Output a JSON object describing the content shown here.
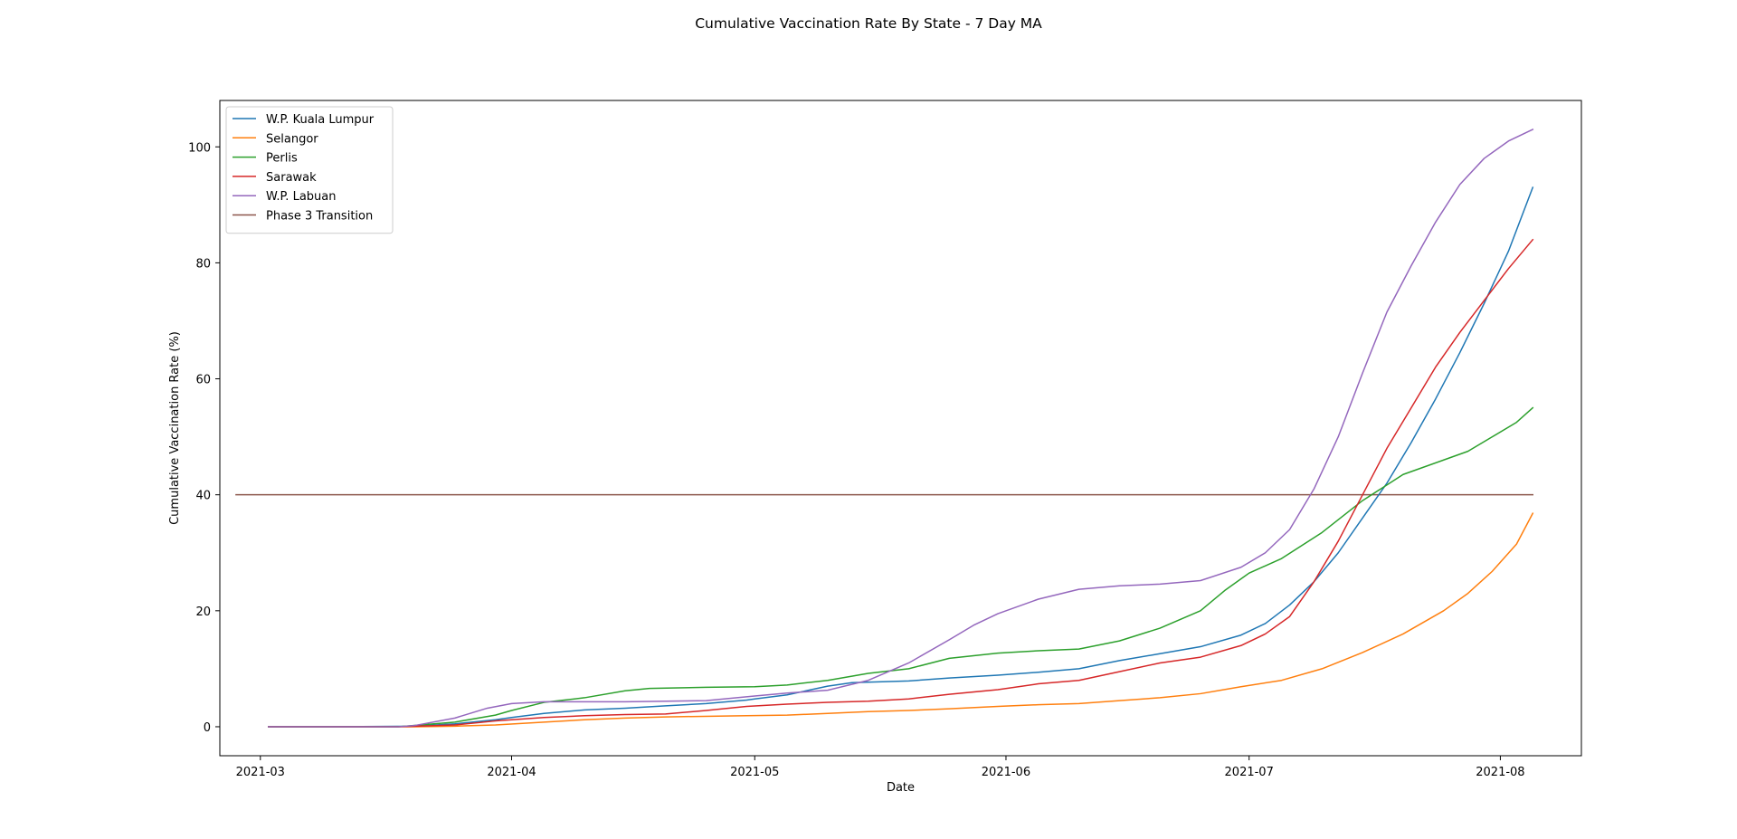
{
  "chart_data": {
    "type": "line",
    "title": "Cumulative Vaccination Rate By State - 7 Day MA",
    "xlabel": "Date",
    "ylabel": "Cumulative Vaccination Rate (%)",
    "x_start": "2021-02-24",
    "x_end": "2021-08-11",
    "ylim": [
      -5,
      108
    ],
    "x_ticks": [
      "2021-03",
      "2021-04",
      "2021-05",
      "2021-06",
      "2021-07",
      "2021-08"
    ],
    "y_ticks": [
      0,
      20,
      40,
      60,
      80,
      100
    ],
    "legend_position": "upper left",
    "grid": false,
    "series": [
      {
        "name": "W.P. Kuala Lumpur",
        "color": "#1f77b4",
        "points": [
          [
            "2021-03-02",
            0
          ],
          [
            "2021-03-10",
            0
          ],
          [
            "2021-03-20",
            0.1
          ],
          [
            "2021-03-25",
            0.5
          ],
          [
            "2021-03-30",
            1.2
          ],
          [
            "2021-04-01",
            1.6
          ],
          [
            "2021-04-05",
            2.3
          ],
          [
            "2021-04-10",
            2.9
          ],
          [
            "2021-04-15",
            3.2
          ],
          [
            "2021-04-20",
            3.6
          ],
          [
            "2021-04-25",
            4.0
          ],
          [
            "2021-04-30",
            4.6
          ],
          [
            "2021-05-01",
            4.8
          ],
          [
            "2021-05-05",
            5.5
          ],
          [
            "2021-05-10",
            7.0
          ],
          [
            "2021-05-13",
            7.6
          ],
          [
            "2021-05-20",
            7.9
          ],
          [
            "2021-05-25",
            8.4
          ],
          [
            "2021-05-31",
            8.9
          ],
          [
            "2021-06-05",
            9.4
          ],
          [
            "2021-06-10",
            10.0
          ],
          [
            "2021-06-15",
            11.4
          ],
          [
            "2021-06-20",
            12.6
          ],
          [
            "2021-06-25",
            13.8
          ],
          [
            "2021-06-30",
            15.8
          ],
          [
            "2021-07-03",
            17.8
          ],
          [
            "2021-07-06",
            21.0
          ],
          [
            "2021-07-09",
            25.0
          ],
          [
            "2021-07-12",
            30.0
          ],
          [
            "2021-07-15",
            36.0
          ],
          [
            "2021-07-18",
            42.0
          ],
          [
            "2021-07-21",
            49.0
          ],
          [
            "2021-07-24",
            56.5
          ],
          [
            "2021-07-27",
            64.5
          ],
          [
            "2021-07-30",
            73.0
          ],
          [
            "2021-08-02",
            82.0
          ],
          [
            "2021-08-05",
            93.0
          ]
        ]
      },
      {
        "name": "Selangor",
        "color": "#ff7f0e",
        "points": [
          [
            "2021-03-02",
            0
          ],
          [
            "2021-03-10",
            0
          ],
          [
            "2021-03-20",
            0
          ],
          [
            "2021-03-25",
            0.1
          ],
          [
            "2021-03-30",
            0.3
          ],
          [
            "2021-04-05",
            0.8
          ],
          [
            "2021-04-10",
            1.2
          ],
          [
            "2021-04-15",
            1.5
          ],
          [
            "2021-04-20",
            1.7
          ],
          [
            "2021-04-30",
            1.9
          ],
          [
            "2021-05-05",
            2.0
          ],
          [
            "2021-05-10",
            2.3
          ],
          [
            "2021-05-15",
            2.6
          ],
          [
            "2021-05-20",
            2.8
          ],
          [
            "2021-05-25",
            3.1
          ],
          [
            "2021-05-31",
            3.5
          ],
          [
            "2021-06-05",
            3.8
          ],
          [
            "2021-06-10",
            4.0
          ],
          [
            "2021-06-15",
            4.5
          ],
          [
            "2021-06-20",
            5.0
          ],
          [
            "2021-06-25",
            5.7
          ],
          [
            "2021-06-30",
            6.9
          ],
          [
            "2021-07-05",
            8.0
          ],
          [
            "2021-07-10",
            10.0
          ],
          [
            "2021-07-15",
            12.8
          ],
          [
            "2021-07-20",
            16.0
          ],
          [
            "2021-07-25",
            20.0
          ],
          [
            "2021-07-28",
            23.0
          ],
          [
            "2021-07-31",
            26.8
          ],
          [
            "2021-08-03",
            31.5
          ],
          [
            "2021-08-05",
            36.8
          ]
        ]
      },
      {
        "name": "Perlis",
        "color": "#2ca02c",
        "points": [
          [
            "2021-03-02",
            0
          ],
          [
            "2021-03-10",
            0
          ],
          [
            "2021-03-18",
            0
          ],
          [
            "2021-03-25",
            0.8
          ],
          [
            "2021-03-30",
            2.0
          ],
          [
            "2021-04-01",
            2.8
          ],
          [
            "2021-04-05",
            4.2
          ],
          [
            "2021-04-10",
            5.0
          ],
          [
            "2021-04-15",
            6.2
          ],
          [
            "2021-04-18",
            6.6
          ],
          [
            "2021-04-25",
            6.8
          ],
          [
            "2021-05-01",
            6.9
          ],
          [
            "2021-05-05",
            7.2
          ],
          [
            "2021-05-10",
            8.0
          ],
          [
            "2021-05-15",
            9.2
          ],
          [
            "2021-05-20",
            10.0
          ],
          [
            "2021-05-25",
            11.8
          ],
          [
            "2021-05-31",
            12.7
          ],
          [
            "2021-06-05",
            13.1
          ],
          [
            "2021-06-10",
            13.4
          ],
          [
            "2021-06-15",
            14.8
          ],
          [
            "2021-06-20",
            17.0
          ],
          [
            "2021-06-25",
            20.0
          ],
          [
            "2021-06-28",
            23.5
          ],
          [
            "2021-07-01",
            26.5
          ],
          [
            "2021-07-05",
            29.0
          ],
          [
            "2021-07-10",
            33.5
          ],
          [
            "2021-07-15",
            39.0
          ],
          [
            "2021-07-20",
            43.5
          ],
          [
            "2021-07-25",
            46.0
          ],
          [
            "2021-07-28",
            47.5
          ],
          [
            "2021-07-31",
            50.0
          ],
          [
            "2021-08-03",
            52.5
          ],
          [
            "2021-08-05",
            55.0
          ]
        ]
      },
      {
        "name": "Sarawak",
        "color": "#d62728",
        "points": [
          [
            "2021-03-02",
            0
          ],
          [
            "2021-03-10",
            0
          ],
          [
            "2021-03-18",
            0
          ],
          [
            "2021-03-25",
            0.3
          ],
          [
            "2021-03-30",
            1.0
          ],
          [
            "2021-04-05",
            1.6
          ],
          [
            "2021-04-10",
            1.9
          ],
          [
            "2021-04-15",
            2.1
          ],
          [
            "2021-04-20",
            2.2
          ],
          [
            "2021-04-25",
            2.8
          ],
          [
            "2021-04-30",
            3.5
          ],
          [
            "2021-05-05",
            3.9
          ],
          [
            "2021-05-10",
            4.2
          ],
          [
            "2021-05-15",
            4.4
          ],
          [
            "2021-05-20",
            4.8
          ],
          [
            "2021-05-25",
            5.6
          ],
          [
            "2021-05-31",
            6.4
          ],
          [
            "2021-06-05",
            7.4
          ],
          [
            "2021-06-10",
            8.0
          ],
          [
            "2021-06-15",
            9.5
          ],
          [
            "2021-06-20",
            11.0
          ],
          [
            "2021-06-25",
            12.0
          ],
          [
            "2021-06-30",
            14.0
          ],
          [
            "2021-07-03",
            16.0
          ],
          [
            "2021-07-06",
            19.0
          ],
          [
            "2021-07-09",
            25.0
          ],
          [
            "2021-07-12",
            32.0
          ],
          [
            "2021-07-15",
            40.0
          ],
          [
            "2021-07-18",
            48.0
          ],
          [
            "2021-07-21",
            55.0
          ],
          [
            "2021-07-24",
            62.0
          ],
          [
            "2021-07-27",
            68.0
          ],
          [
            "2021-07-30",
            73.5
          ],
          [
            "2021-08-02",
            79.0
          ],
          [
            "2021-08-05",
            84.0
          ]
        ]
      },
      {
        "name": "W.P. Labuan",
        "color": "#9467bd",
        "points": [
          [
            "2021-03-02",
            0
          ],
          [
            "2021-03-10",
            0
          ],
          [
            "2021-03-18",
            0
          ],
          [
            "2021-03-20",
            0.2
          ],
          [
            "2021-03-25",
            1.5
          ],
          [
            "2021-03-29",
            3.2
          ],
          [
            "2021-04-01",
            4.0
          ],
          [
            "2021-04-05",
            4.3
          ],
          [
            "2021-04-15",
            4.3
          ],
          [
            "2021-04-25",
            4.5
          ],
          [
            "2021-05-01",
            5.3
          ],
          [
            "2021-05-05",
            5.8
          ],
          [
            "2021-05-10",
            6.3
          ],
          [
            "2021-05-15",
            8.0
          ],
          [
            "2021-05-20",
            11.0
          ],
          [
            "2021-05-25",
            15.0
          ],
          [
            "2021-05-28",
            17.5
          ],
          [
            "2021-05-31",
            19.5
          ],
          [
            "2021-06-05",
            22.0
          ],
          [
            "2021-06-10",
            23.7
          ],
          [
            "2021-06-15",
            24.3
          ],
          [
            "2021-06-20",
            24.6
          ],
          [
            "2021-06-25",
            25.2
          ],
          [
            "2021-06-30",
            27.5
          ],
          [
            "2021-07-03",
            30.0
          ],
          [
            "2021-07-06",
            34.0
          ],
          [
            "2021-07-09",
            41.0
          ],
          [
            "2021-07-12",
            50.0
          ],
          [
            "2021-07-15",
            61.0
          ],
          [
            "2021-07-18",
            71.5
          ],
          [
            "2021-07-21",
            79.5
          ],
          [
            "2021-07-24",
            87.0
          ],
          [
            "2021-07-27",
            93.5
          ],
          [
            "2021-07-30",
            98.0
          ],
          [
            "2021-08-02",
            101.0
          ],
          [
            "2021-08-05",
            103.0
          ]
        ]
      },
      {
        "name": "Phase 3 Transition",
        "color": "#8c564b",
        "points": [
          [
            "2021-02-26",
            40
          ],
          [
            "2021-08-05",
            40
          ]
        ]
      }
    ]
  }
}
